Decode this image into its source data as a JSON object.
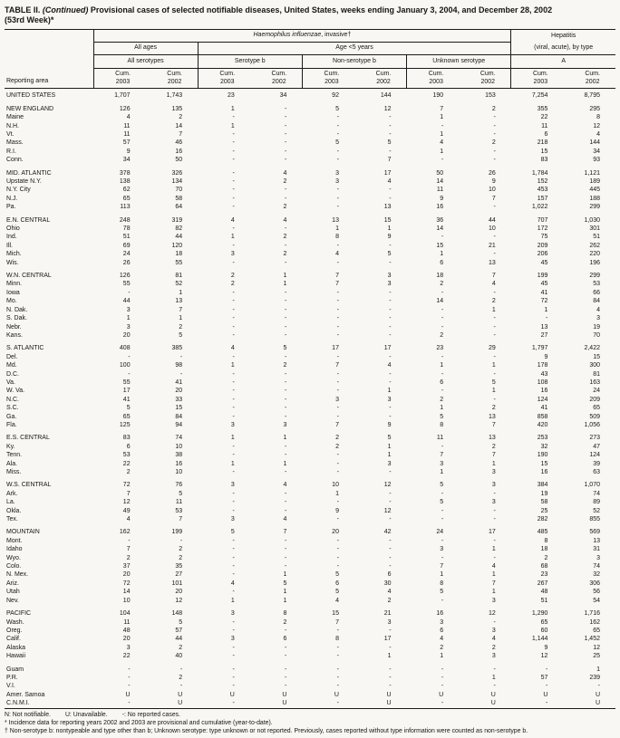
{
  "title": {
    "prefix": "TABLE II.",
    "continued": "(Continued)",
    "rest": " Provisional cases of selected notifiable diseases, United States, weeks ending January 3, 2004, and December 28, 2002",
    "line2": "(53rd Week)*"
  },
  "header": {
    "reporting_area": "Reporting area",
    "hib_italic": "Haemophilus influenzae",
    "hib_rest": ", invasive†",
    "hepatitis": "Hepatitis",
    "hepatitis_sub": "(viral, acute), by type",
    "all_ages": "All ages",
    "all_serotypes": "All serotypes",
    "age_lt5": "Age <5 years",
    "serotype_b": "Serotype b",
    "non_serotype_b": "Non-serotype b",
    "unknown_serotype": "Unknown serotype",
    "hep_a": "A",
    "cum": "Cum.",
    "y2003": "2003",
    "y2002": "2002"
  },
  "rows": [
    {
      "area": "UNITED STATES",
      "values": [
        "1,707",
        "1,743",
        "23",
        "34",
        "92",
        "144",
        "190",
        "153",
        "7,254",
        "8,795"
      ]
    },
    {
      "area": "NEW ENGLAND",
      "sect": true,
      "values": [
        "126",
        "135",
        "1",
        "-",
        "5",
        "12",
        "7",
        "2",
        "355",
        "295"
      ]
    },
    {
      "area": "Maine",
      "values": [
        "4",
        "2",
        "-",
        "-",
        "-",
        "-",
        "1",
        "-",
        "22",
        "8"
      ]
    },
    {
      "area": "N.H.",
      "values": [
        "11",
        "14",
        "1",
        "-",
        "-",
        "-",
        "-",
        "-",
        "11",
        "12"
      ]
    },
    {
      "area": "Vt.",
      "values": [
        "11",
        "7",
        "-",
        "-",
        "-",
        "-",
        "1",
        "-",
        "6",
        "4"
      ]
    },
    {
      "area": "Mass.",
      "values": [
        "57",
        "46",
        "-",
        "-",
        "5",
        "5",
        "4",
        "2",
        "218",
        "144"
      ]
    },
    {
      "area": "R.I.",
      "values": [
        "9",
        "16",
        "-",
        "-",
        "-",
        "-",
        "1",
        "-",
        "15",
        "34"
      ]
    },
    {
      "area": "Conn.",
      "values": [
        "34",
        "50",
        "-",
        "-",
        "-",
        "7",
        "-",
        "-",
        "83",
        "93"
      ]
    },
    {
      "area": "MID. ATLANTIC",
      "sect": true,
      "values": [
        "378",
        "326",
        "-",
        "4",
        "3",
        "17",
        "50",
        "26",
        "1,784",
        "1,121"
      ]
    },
    {
      "area": "Upstate N.Y.",
      "values": [
        "138",
        "134",
        "-",
        "2",
        "3",
        "4",
        "14",
        "9",
        "152",
        "189"
      ]
    },
    {
      "area": "N.Y. City",
      "values": [
        "62",
        "70",
        "-",
        "-",
        "-",
        "-",
        "11",
        "10",
        "453",
        "445"
      ]
    },
    {
      "area": "N.J.",
      "values": [
        "65",
        "58",
        "-",
        "-",
        "-",
        "-",
        "9",
        "7",
        "157",
        "188"
      ]
    },
    {
      "area": "Pa.",
      "values": [
        "113",
        "64",
        "-",
        "2",
        "-",
        "13",
        "16",
        "-",
        "1,022",
        "299"
      ]
    },
    {
      "area": "E.N. CENTRAL",
      "sect": true,
      "values": [
        "248",
        "319",
        "4",
        "4",
        "13",
        "15",
        "36",
        "44",
        "707",
        "1,030"
      ]
    },
    {
      "area": "Ohio",
      "values": [
        "78",
        "82",
        "-",
        "-",
        "1",
        "1",
        "14",
        "10",
        "172",
        "301"
      ]
    },
    {
      "area": "Ind.",
      "values": [
        "51",
        "44",
        "1",
        "2",
        "8",
        "9",
        "-",
        "-",
        "75",
        "51"
      ]
    },
    {
      "area": "Ill.",
      "values": [
        "69",
        "120",
        "-",
        "-",
        "-",
        "-",
        "15",
        "21",
        "209",
        "262"
      ]
    },
    {
      "area": "Mich.",
      "values": [
        "24",
        "18",
        "3",
        "2",
        "4",
        "5",
        "1",
        "-",
        "206",
        "220"
      ]
    },
    {
      "area": "Wis.",
      "values": [
        "26",
        "55",
        "-",
        "-",
        "-",
        "-",
        "6",
        "13",
        "45",
        "196"
      ]
    },
    {
      "area": "W.N. CENTRAL",
      "sect": true,
      "values": [
        "126",
        "81",
        "2",
        "1",
        "7",
        "3",
        "18",
        "7",
        "199",
        "299"
      ]
    },
    {
      "area": "Minn.",
      "values": [
        "55",
        "52",
        "2",
        "1",
        "7",
        "3",
        "2",
        "4",
        "45",
        "53"
      ]
    },
    {
      "area": "Iowa",
      "values": [
        "-",
        "1",
        "-",
        "-",
        "-",
        "-",
        "-",
        "-",
        "41",
        "66"
      ]
    },
    {
      "area": "Mo.",
      "values": [
        "44",
        "13",
        "-",
        "-",
        "-",
        "-",
        "14",
        "2",
        "72",
        "84"
      ]
    },
    {
      "area": "N. Dak.",
      "values": [
        "3",
        "7",
        "-",
        "-",
        "-",
        "-",
        "-",
        "1",
        "1",
        "4"
      ]
    },
    {
      "area": "S. Dak.",
      "values": [
        "1",
        "1",
        "-",
        "-",
        "-",
        "-",
        "-",
        "-",
        "-",
        "3"
      ]
    },
    {
      "area": "Nebr.",
      "values": [
        "3",
        "2",
        "-",
        "-",
        "-",
        "-",
        "-",
        "-",
        "13",
        "19"
      ]
    },
    {
      "area": "Kans.",
      "values": [
        "20",
        "5",
        "-",
        "-",
        "-",
        "-",
        "2",
        "-",
        "27",
        "70"
      ]
    },
    {
      "area": "S. ATLANTIC",
      "sect": true,
      "values": [
        "408",
        "385",
        "4",
        "5",
        "17",
        "17",
        "23",
        "29",
        "1,797",
        "2,422"
      ]
    },
    {
      "area": "Del.",
      "values": [
        "-",
        "-",
        "-",
        "-",
        "-",
        "-",
        "-",
        "-",
        "9",
        "15"
      ]
    },
    {
      "area": "Md.",
      "values": [
        "100",
        "98",
        "1",
        "2",
        "7",
        "4",
        "1",
        "1",
        "178",
        "300"
      ]
    },
    {
      "area": "D.C.",
      "values": [
        "-",
        "-",
        "-",
        "-",
        "-",
        "-",
        "-",
        "-",
        "43",
        "81"
      ]
    },
    {
      "area": "Va.",
      "values": [
        "55",
        "41",
        "-",
        "-",
        "-",
        "-",
        "6",
        "5",
        "108",
        "163"
      ]
    },
    {
      "area": "W. Va.",
      "values": [
        "17",
        "20",
        "-",
        "-",
        "-",
        "1",
        "-",
        "1",
        "16",
        "24"
      ]
    },
    {
      "area": "N.C.",
      "values": [
        "41",
        "33",
        "-",
        "-",
        "3",
        "3",
        "2",
        "-",
        "124",
        "209"
      ]
    },
    {
      "area": "S.C.",
      "values": [
        "5",
        "15",
        "-",
        "-",
        "-",
        "-",
        "1",
        "2",
        "41",
        "65"
      ]
    },
    {
      "area": "Ga.",
      "values": [
        "65",
        "84",
        "-",
        "-",
        "-",
        "-",
        "5",
        "13",
        "858",
        "509"
      ]
    },
    {
      "area": "Fla.",
      "values": [
        "125",
        "94",
        "3",
        "3",
        "7",
        "9",
        "8",
        "7",
        "420",
        "1,056"
      ]
    },
    {
      "area": "E.S. CENTRAL",
      "sect": true,
      "values": [
        "83",
        "74",
        "1",
        "1",
        "2",
        "5",
        "11",
        "13",
        "253",
        "273"
      ]
    },
    {
      "area": "Ky.",
      "values": [
        "6",
        "10",
        "-",
        "-",
        "2",
        "1",
        "-",
        "2",
        "32",
        "47"
      ]
    },
    {
      "area": "Tenn.",
      "values": [
        "53",
        "38",
        "-",
        "-",
        "-",
        "1",
        "7",
        "7",
        "190",
        "124"
      ]
    },
    {
      "area": "Ala.",
      "values": [
        "22",
        "16",
        "1",
        "1",
        "-",
        "3",
        "3",
        "1",
        "15",
        "39"
      ]
    },
    {
      "area": "Miss.",
      "values": [
        "2",
        "10",
        "-",
        "-",
        "-",
        "-",
        "1",
        "3",
        "16",
        "63"
      ]
    },
    {
      "area": "W.S. CENTRAL",
      "sect": true,
      "values": [
        "72",
        "76",
        "3",
        "4",
        "10",
        "12",
        "5",
        "3",
        "384",
        "1,070"
      ]
    },
    {
      "area": "Ark.",
      "values": [
        "7",
        "5",
        "-",
        "-",
        "1",
        "-",
        "-",
        "-",
        "19",
        "74"
      ]
    },
    {
      "area": "La.",
      "values": [
        "12",
        "11",
        "-",
        "-",
        "-",
        "-",
        "5",
        "3",
        "58",
        "89"
      ]
    },
    {
      "area": "Okla.",
      "values": [
        "49",
        "53",
        "-",
        "-",
        "9",
        "12",
        "-",
        "-",
        "25",
        "52"
      ]
    },
    {
      "area": "Tex.",
      "values": [
        "4",
        "7",
        "3",
        "4",
        "-",
        "-",
        "-",
        "-",
        "282",
        "855"
      ]
    },
    {
      "area": "MOUNTAIN",
      "sect": true,
      "values": [
        "162",
        "199",
        "5",
        "7",
        "20",
        "42",
        "24",
        "17",
        "485",
        "569"
      ]
    },
    {
      "area": "Mont.",
      "values": [
        "-",
        "-",
        "-",
        "-",
        "-",
        "-",
        "-",
        "-",
        "8",
        "13"
      ]
    },
    {
      "area": "Idaho",
      "values": [
        "7",
        "2",
        "-",
        "-",
        "-",
        "-",
        "3",
        "1",
        "18",
        "31"
      ]
    },
    {
      "area": "Wyo.",
      "values": [
        "2",
        "2",
        "-",
        "-",
        "-",
        "-",
        "-",
        "-",
        "2",
        "3"
      ]
    },
    {
      "area": "Colo.",
      "values": [
        "37",
        "35",
        "-",
        "-",
        "-",
        "-",
        "7",
        "4",
        "68",
        "74"
      ]
    },
    {
      "area": "N. Mex.",
      "values": [
        "20",
        "27",
        "-",
        "1",
        "5",
        "6",
        "1",
        "1",
        "23",
        "32"
      ]
    },
    {
      "area": "Ariz.",
      "values": [
        "72",
        "101",
        "4",
        "5",
        "6",
        "30",
        "8",
        "7",
        "267",
        "306"
      ]
    },
    {
      "area": "Utah",
      "values": [
        "14",
        "20",
        "-",
        "1",
        "5",
        "4",
        "5",
        "1",
        "48",
        "56"
      ]
    },
    {
      "area": "Nev.",
      "values": [
        "10",
        "12",
        "1",
        "1",
        "4",
        "2",
        "-",
        "3",
        "51",
        "54"
      ]
    },
    {
      "area": "PACIFIC",
      "sect": true,
      "values": [
        "104",
        "148",
        "3",
        "8",
        "15",
        "21",
        "16",
        "12",
        "1,290",
        "1,716"
      ]
    },
    {
      "area": "Wash.",
      "values": [
        "11",
        "5",
        "-",
        "2",
        "7",
        "3",
        "3",
        "-",
        "65",
        "162"
      ]
    },
    {
      "area": "Oreg.",
      "values": [
        "48",
        "57",
        "-",
        "-",
        "-",
        "-",
        "6",
        "3",
        "60",
        "65"
      ]
    },
    {
      "area": "Calif.",
      "values": [
        "20",
        "44",
        "3",
        "6",
        "8",
        "17",
        "4",
        "4",
        "1,144",
        "1,452"
      ]
    },
    {
      "area": "Alaska",
      "values": [
        "3",
        "2",
        "-",
        "-",
        "-",
        "-",
        "2",
        "2",
        "9",
        "12"
      ]
    },
    {
      "area": "Hawaii",
      "values": [
        "22",
        "40",
        "-",
        "-",
        "-",
        "1",
        "1",
        "3",
        "12",
        "25"
      ]
    },
    {
      "area": "Guam",
      "sect": true,
      "values": [
        "-",
        "-",
        "-",
        "-",
        "-",
        "-",
        "-",
        "-",
        "-",
        "1"
      ]
    },
    {
      "area": "P.R.",
      "values": [
        "-",
        "2",
        "-",
        "-",
        "-",
        "-",
        "-",
        "1",
        "57",
        "239"
      ]
    },
    {
      "area": "V.I.",
      "values": [
        "-",
        "-",
        "-",
        "-",
        "-",
        "-",
        "-",
        "-",
        "-",
        "-"
      ]
    },
    {
      "area": "Amer. Samoa",
      "values": [
        "U",
        "U",
        "U",
        "U",
        "U",
        "U",
        "U",
        "U",
        "U",
        "U"
      ]
    },
    {
      "area": "C.N.M.I.",
      "values": [
        "-",
        "U",
        "-",
        "U",
        "-",
        "U",
        "-",
        "U",
        "-",
        "U"
      ]
    }
  ],
  "footnotes": {
    "n": "N: Not notifiable.",
    "u": "U: Unavailable.",
    "dash": "-: No reported cases.",
    "star": "* Incidence data for reporting years 2002 and 2003 are provisional and cumulative (year-to-date).",
    "dagger": "† Non-serotype b: nontypeable and type other than b; Unknown serotype: type unknown or not reported. Previously, cases reported without type information were counted as non-serotype b."
  }
}
